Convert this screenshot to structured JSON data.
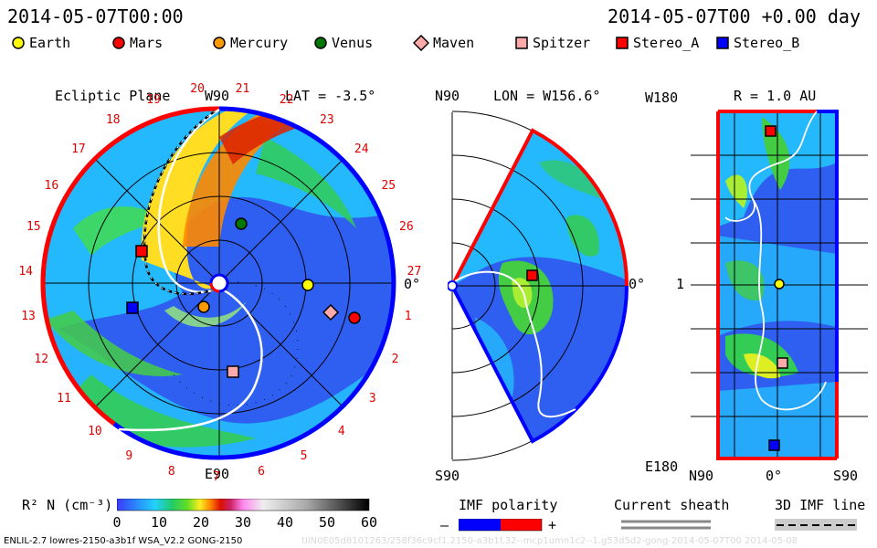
{
  "header": {
    "timestamp": "2014-05-07T00:00",
    "offset": "2014-05-07T00 +0.00 day"
  },
  "legend": [
    {
      "label": "Earth",
      "shape": "circle",
      "color": "#ffff00"
    },
    {
      "label": "Mars",
      "shape": "circle",
      "color": "#ff0000"
    },
    {
      "label": "Mercury",
      "shape": "circle",
      "color": "#ff9900"
    },
    {
      "label": "Venus",
      "shape": "circle",
      "color": "#007700"
    },
    {
      "label": "Maven",
      "shape": "diamond",
      "color": "#ffaaaa"
    },
    {
      "label": "Spitzer",
      "shape": "square",
      "color": "#ffaaaa"
    },
    {
      "label": "Stereo_A",
      "shape": "square",
      "color": "#ff0000"
    },
    {
      "label": "Stereo_B",
      "shape": "square",
      "color": "#0000ff"
    }
  ],
  "panel1": {
    "title": "Ecliptic Plane",
    "lat": "LAT = -3.5°",
    "top_label": "W90",
    "bottom_label": "E90",
    "right_label": "0°",
    "carrington_ticks": [
      "1",
      "2",
      "3",
      "4",
      "5",
      "6",
      "7",
      "8",
      "9",
      "10",
      "11",
      "12",
      "13",
      "14",
      "15",
      "16",
      "17",
      "18",
      "19",
      "20",
      "21",
      "22",
      "23",
      "24",
      "25",
      "26",
      "27"
    ]
  },
  "panel2": {
    "lon": "LON = W156.6°",
    "top_label": "N90",
    "bottom_label": "S90",
    "right_label": "0°"
  },
  "panel3": {
    "r": "R = 1.0 AU",
    "top_label": "W180",
    "bottom_label": "E180",
    "mid_label": "1",
    "x_left": "N90",
    "x_mid": "0°",
    "x_right": "S90"
  },
  "colorbar": {
    "label": "R² N (cm⁻³)",
    "ticks": [
      "0",
      "10",
      "20",
      "30",
      "40",
      "50",
      "60"
    ]
  },
  "imf": {
    "label": "IMF polarity",
    "minus": "–",
    "plus": "+",
    "minus_color": "#0000ff",
    "plus_color": "#ff0000"
  },
  "sheath": {
    "label": "Current sheath"
  },
  "imf3d": {
    "label": "3D IMF line"
  },
  "footer": {
    "model": "ENLIL-2.7 lowres-2150-a3b1f WSA_V2.2 GONG-2150",
    "watermark": "tIlN0E05d8101263/258f36c9cf1.2150-a3b1f.32--mcp1umn1c2--1.g53d5d2-gong-2014-05-07T00   2014-05-08"
  }
}
